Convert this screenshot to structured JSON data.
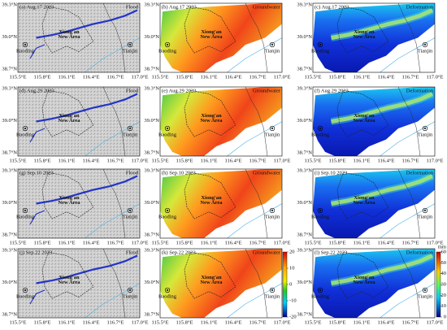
{
  "panels": [
    {
      "label": "(a) Aug.17 2023",
      "kind": "Flood"
    },
    {
      "label": "(b) Aug.17 2023",
      "kind": "Groundwater"
    },
    {
      "label": "(c) Aug.17 2023",
      "kind": "Deformation"
    },
    {
      "label": "(d) Aug.29 2023",
      "kind": "Flood"
    },
    {
      "label": "(e) Aug.29 2023",
      "kind": "Groundwater"
    },
    {
      "label": "(f) Aug.29 2023",
      "kind": "Deformation"
    },
    {
      "label": "(g) Sep.10 2023",
      "kind": "Flood"
    },
    {
      "label": "(h) Sep.10 2023",
      "kind": "Groundwater"
    },
    {
      "label": "(i) Sep.10 2023",
      "kind": "Deformation"
    },
    {
      "label": "(j) Sep.22 2023",
      "kind": "Flood"
    },
    {
      "label": "(k) Sep.22 2023",
      "kind": "Groundwater"
    },
    {
      "label": "(l) Sep.22 2023",
      "kind": "Deformation"
    }
  ],
  "places": {
    "area_line1": "Xiong'an",
    "area_line2": "New Area",
    "baoding": "Baoding",
    "tianjin": "Tianjin"
  },
  "lat_ticks": [
    "39.3°N",
    "39.0°N",
    "38.7°N"
  ],
  "lon_ticks": [
    "115.5°E",
    "115.8°E",
    "116.1°E",
    "116.4°E",
    "116.7°E",
    "117.0°E"
  ],
  "groundwater_colorbar": {
    "ticks": [
      20,
      10,
      0,
      -10,
      -20
    ]
  },
  "deformation_colorbar": {
    "unit": "mm",
    "ticks": [
      60,
      50,
      40,
      30,
      20,
      10,
      0
    ]
  }
}
